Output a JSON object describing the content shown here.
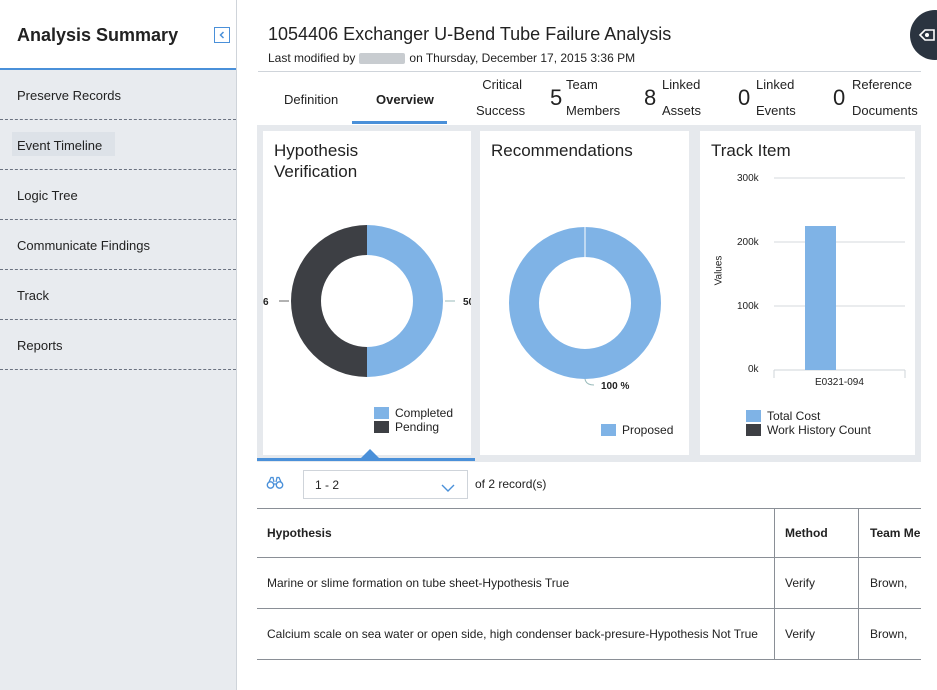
{
  "sidebar": {
    "title": "Analysis Summary",
    "items": [
      {
        "label": "Preserve Records"
      },
      {
        "label": "Event Timeline"
      },
      {
        "label": "Logic Tree"
      },
      {
        "label": "Communicate Findings"
      },
      {
        "label": "Track"
      },
      {
        "label": "Reports"
      }
    ]
  },
  "header": {
    "title": "1054406 Exchanger U-Bend Tube Failure Analysis",
    "modified_prefix": "Last modified by",
    "modified_suffix": "on Thursday, December 17, 2015 3:36 PM"
  },
  "tabs": {
    "definition": "Definition",
    "overview": "Overview",
    "critical_success_line1": "Critical",
    "critical_success_line2": "Success",
    "team_count": "5",
    "team_line1": "Team",
    "team_line2": "Members",
    "assets_count": "8",
    "assets_line1": "Linked",
    "assets_line2": "Assets",
    "events_count": "0",
    "events_line1": "Linked",
    "events_line2": "Events",
    "docs_count": "0",
    "docs_line1": "Reference",
    "docs_line2": "Documents"
  },
  "panels": {
    "hypothesis": {
      "title_line1": "Hypothesis",
      "title_line2": "Verification",
      "left_label": "6",
      "right_label": "50",
      "legend_completed": "Completed",
      "legend_pending": "Pending"
    },
    "recommendations": {
      "title": "Recommendations",
      "pct_label": "100 %",
      "legend_proposed": "Proposed"
    },
    "track": {
      "title": "Track Item",
      "ylabel": "Values",
      "ticks": [
        "300k",
        "200k",
        "100k",
        "0k"
      ],
      "category": "E0321-094",
      "legend_total_cost": "Total Cost",
      "legend_work_history": "Work History Count"
    }
  },
  "colors": {
    "light_blue": "#7fb3e6",
    "dark": "#3d3f44",
    "accent": "#4a90d9"
  },
  "chart_data": [
    {
      "type": "pie",
      "title": "Hypothesis Verification",
      "labels": [
        "Completed",
        "Pending"
      ],
      "values": [
        50,
        50
      ]
    },
    {
      "type": "pie",
      "title": "Recommendations",
      "labels": [
        "Proposed"
      ],
      "values": [
        100
      ]
    },
    {
      "type": "bar",
      "title": "Track Item",
      "categories": [
        "E0321-094"
      ],
      "series": [
        {
          "name": "Total Cost",
          "values": [
            225000
          ]
        },
        {
          "name": "Work History Count",
          "values": [
            0
          ]
        }
      ],
      "ylabel": "Values",
      "ylim": [
        0,
        300000
      ]
    }
  ],
  "pager": {
    "range": "1 - 2",
    "of_text": "of 2 record(s)"
  },
  "table": {
    "headers": [
      "Hypothesis",
      "Method",
      "Team Me"
    ],
    "rows": [
      [
        "Marine or slime formation on tube sheet-Hypothesis True",
        "Verify",
        "Brown,"
      ],
      [
        "Calcium scale on sea water or open side, high condenser back-presure-Hypothesis Not True",
        "Verify",
        "Brown,"
      ]
    ]
  }
}
